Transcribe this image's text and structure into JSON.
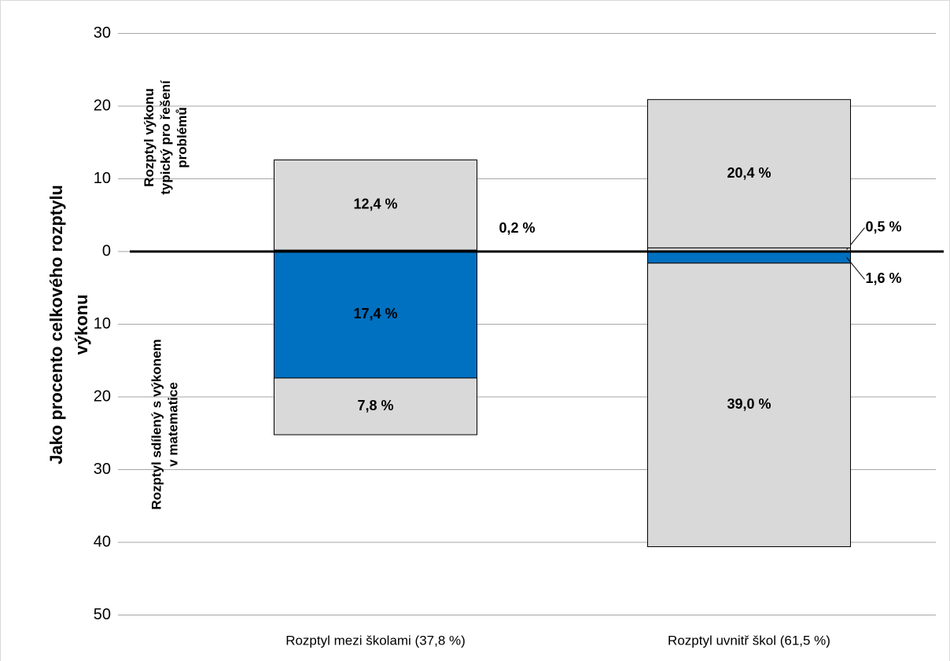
{
  "chart_data": {
    "type": "bar",
    "stacked": "diverging",
    "y_label": [
      "Jako procento celkového rozptylu",
      "výkonu"
    ],
    "annotations": [
      {
        "lines": [
          "Rozptyl výkonu",
          "typický pro řešení",
          "problémů"
        ]
      },
      {
        "lines": [
          "Rozptyl sdílený s výkonem",
          "v matematice"
        ]
      }
    ],
    "categories": [
      "Rozptyl mezi školami (37,8 %)",
      "Rozptyl uvnitř škol (61,5 %)"
    ],
    "series": [
      {
        "color": "#d9d9d9",
        "values": [
          0.2,
          0.5
        ],
        "value_labels": [
          "0,2 %",
          "0,5 %"
        ]
      },
      {
        "color": "#d9d9d9",
        "values": [
          12.4,
          20.4
        ],
        "value_labels": [
          "12,4 %",
          "20,4 %"
        ]
      },
      {
        "color": "#0070c0",
        "values": [
          -17.4,
          -1.6
        ],
        "value_labels": [
          "17,4 %",
          "1,6 %"
        ]
      },
      {
        "color": "#d9d9d9",
        "values": [
          -7.8,
          -39.0
        ],
        "value_labels": [
          "7,8 %",
          "39,0 %"
        ]
      }
    ],
    "ylim": [
      -50,
      30
    ],
    "yticks": [
      30,
      20,
      10,
      0,
      {
        "value": -10,
        "label": "10"
      },
      {
        "value": -20,
        "label": "20"
      },
      {
        "value": -30,
        "label": "30"
      },
      {
        "value": -40,
        "label": "40"
      },
      {
        "value": -50,
        "label": "50"
      }
    ],
    "grid": true
  }
}
